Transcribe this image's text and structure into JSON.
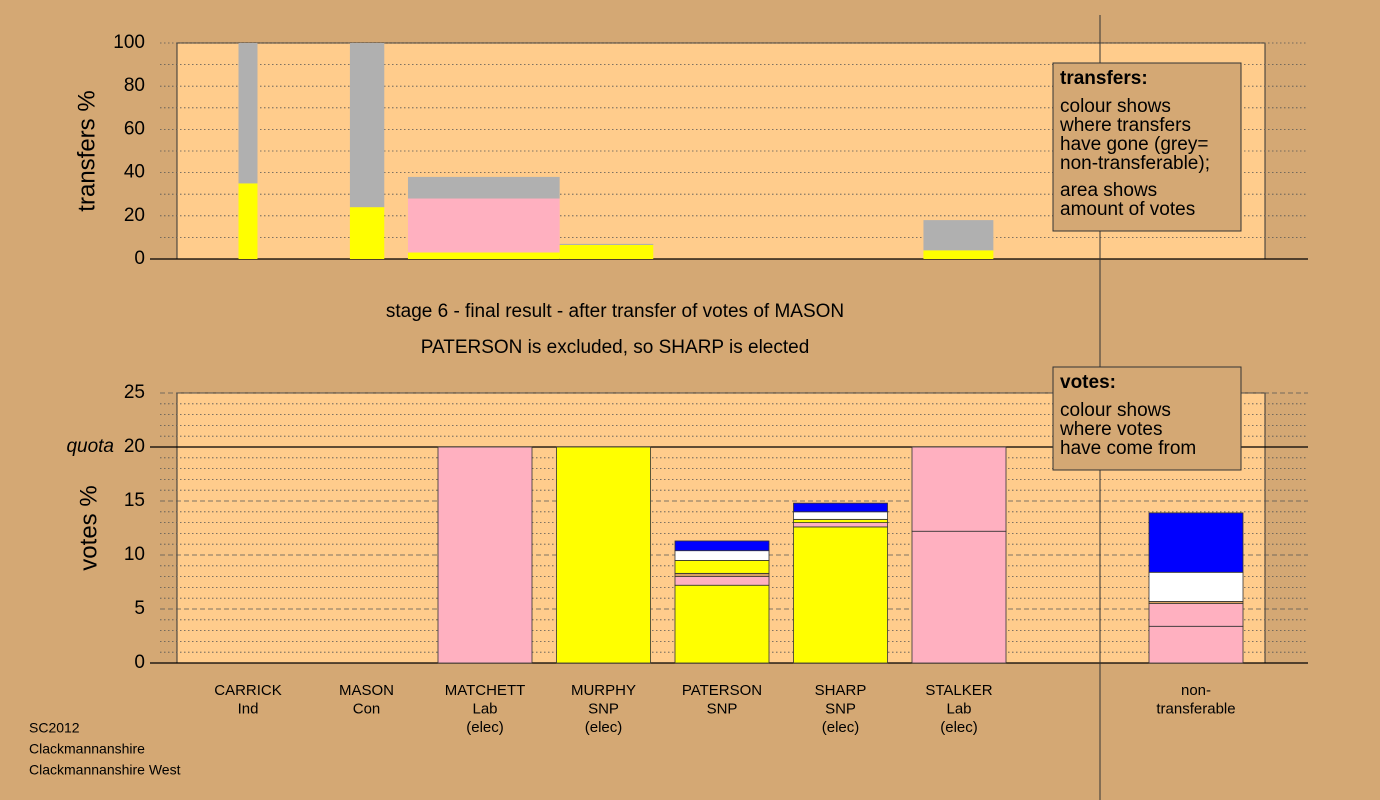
{
  "chart_data": [
    {
      "type": "stacked-transfer",
      "ylabel": "transfers %",
      "ylim": [
        0,
        100
      ],
      "yticks": [
        0,
        20,
        40,
        60,
        80,
        100
      ],
      "minor_yticks": [
        10,
        30,
        50,
        70,
        90
      ],
      "bars": [
        {
          "x": [
            -0.08,
            0.08
          ],
          "segments": [
            {
              "color": "#ffff00",
              "value": 35
            },
            {
              "color": "#b0b0b0",
              "value": 65
            }
          ]
        },
        {
          "x": [
            0.86,
            1.15
          ],
          "segments": [
            {
              "color": "#ffff00",
              "value": 24
            },
            {
              "color": "#b0b0b0",
              "value": 76
            }
          ]
        },
        {
          "x": [
            1.35,
            2.63
          ],
          "segments": [
            {
              "color": "#ffff00",
              "value": 3
            },
            {
              "color": "#ffb0c0",
              "value": 25
            },
            {
              "color": "#b0b0b0",
              "value": 10
            }
          ]
        },
        {
          "x": [
            2.63,
            3.42
          ],
          "segments": [
            {
              "color": "#ffff00",
              "value": 6.5
            },
            {
              "color": "#b0b0b0",
              "value": 0.5
            }
          ]
        },
        {
          "x": [
            5.7,
            6.29
          ],
          "segments": [
            {
              "color": "#ffff00",
              "value": 4
            },
            {
              "color": "#b0b0b0",
              "value": 14
            }
          ]
        }
      ],
      "legend": {
        "heading": "transfers:",
        "paragraphs": [
          [
            "colour shows",
            "where transfers",
            "have gone (grey=",
            "non-transferable);"
          ],
          [
            "area shows",
            "amount of votes"
          ]
        ]
      }
    },
    {
      "type": "stacked-bar",
      "title": "stage 6 - final result - after transfer of votes of MASON",
      "subtitle": "PATERSON is excluded, so SHARP is elected",
      "ylabel": "votes %",
      "ylim": [
        0,
        25
      ],
      "yticks": [
        0,
        5,
        10,
        15,
        20,
        25
      ],
      "minor_yticks": [
        1,
        2,
        3,
        4,
        6,
        7,
        8,
        9,
        11,
        12,
        13,
        14,
        16,
        17,
        18,
        19,
        21,
        22,
        23,
        24
      ],
      "quota": {
        "value": 20,
        "label": "quota"
      },
      "categories": [
        [
          "CARRICK",
          "Ind"
        ],
        [
          "MASON",
          "Con"
        ],
        [
          "MATCHETT",
          "Lab",
          "(elec)"
        ],
        [
          "MURPHY",
          "SNP",
          "(elec)"
        ],
        [
          "PATERSON",
          "SNP"
        ],
        [
          "SHARP",
          "SNP",
          "(elec)"
        ],
        [
          "STALKER",
          "Lab",
          "(elec)"
        ],
        null,
        [
          "non-",
          "transferable"
        ]
      ],
      "stacks": [
        [
          {
            "color": "#ffb0c0",
            "value": 0
          }
        ],
        [
          {
            "color": "#ffb0c0",
            "value": 0
          }
        ],
        [
          {
            "color": "#ffb0c0",
            "value": 20
          }
        ],
        [
          {
            "color": "#ffff00",
            "value": 20
          }
        ],
        [
          {
            "color": "#ffff00",
            "value": 7.2
          },
          {
            "color": "#ffb0c0",
            "value": 0.8
          },
          {
            "color": "#d8a060",
            "value": 0.3
          },
          {
            "color": "#ffff00",
            "value": 1.2
          },
          {
            "color": "#ffffff",
            "value": 0.9
          },
          {
            "color": "#0000ff",
            "value": 0.9
          }
        ],
        [
          {
            "color": "#ffff00",
            "value": 12.6
          },
          {
            "color": "#ffb0c0",
            "value": 0.4
          },
          {
            "color": "#ffff00",
            "value": 0.3
          },
          {
            "color": "#ffffff",
            "value": 0.7
          },
          {
            "color": "#0000ff",
            "value": 0.8
          }
        ],
        [
          {
            "color": "#ffb0c0",
            "value": 12.2
          },
          {
            "color": "#ffb0c0",
            "value": 7.8
          }
        ],
        [],
        [
          {
            "color": "#ffb0c0",
            "value": 3.4
          },
          {
            "color": "#ffb0c0",
            "value": 2.1
          },
          {
            "color": "#d8a060",
            "value": 0.2
          },
          {
            "color": "#ffffff",
            "value": 2.7
          },
          {
            "color": "#0000ff",
            "value": 5.5
          }
        ]
      ],
      "legend": {
        "heading": "votes:",
        "paragraphs": [
          [
            "colour shows",
            "where votes",
            "have come from"
          ]
        ]
      }
    }
  ],
  "footer": [
    "SC2012",
    "Clackmannanshire",
    "Clackmannanshire West"
  ]
}
